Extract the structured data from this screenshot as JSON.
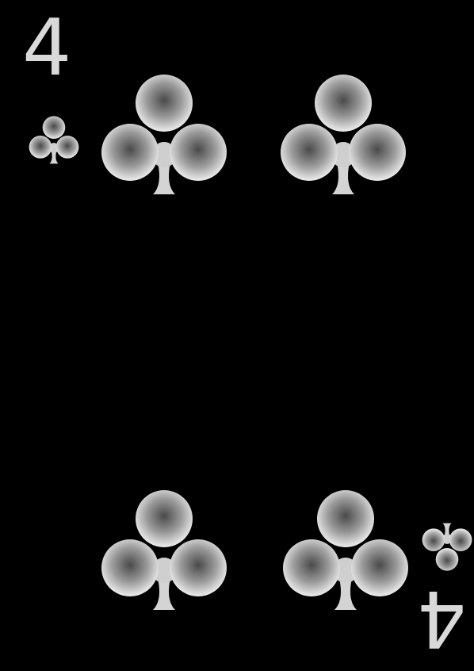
{
  "card": {
    "rank": "4",
    "suit": "clubs",
    "suit_icon": "club-icon",
    "colors": {
      "background": "#000000",
      "pip_light": "#ededed",
      "pip_mid": "#bdbdbd",
      "pip_dark": "#4a4a4a",
      "rank_text": "#d9d9d9"
    }
  }
}
